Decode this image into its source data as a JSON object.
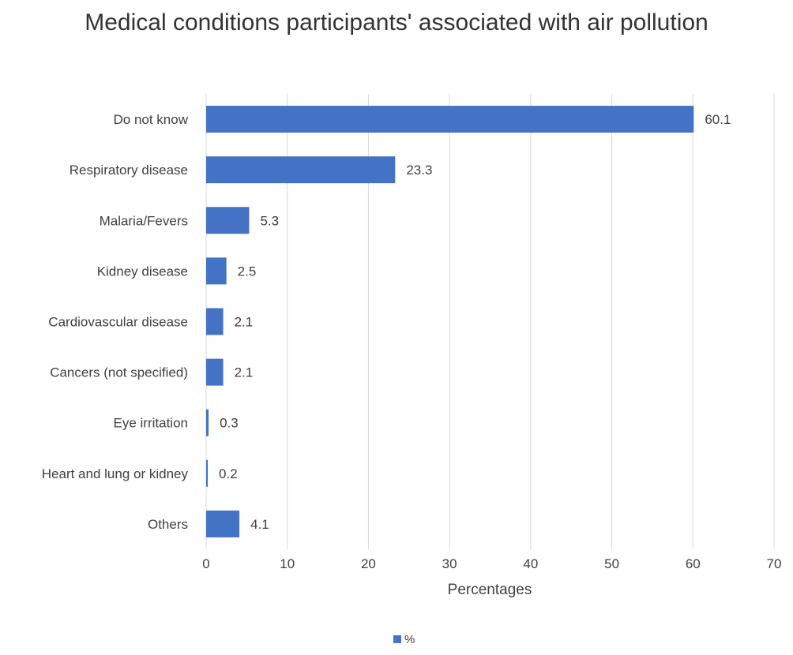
{
  "chart_data": {
    "type": "bar",
    "orientation": "horizontal",
    "title": "Medical conditions participants' associated with air pollution",
    "categories": [
      "Do not know",
      "Respiratory disease",
      "Malaria/Fevers",
      "Kidney disease",
      "Cardiovascular disease",
      "Cancers (not specified)",
      "Eye irritation",
      "Heart and lung or kidney",
      "Others"
    ],
    "series": [
      {
        "name": "%",
        "values": [
          60.1,
          23.3,
          5.3,
          2.5,
          2.1,
          2.1,
          0.3,
          0.2,
          4.1
        ]
      }
    ],
    "data_labels": [
      "60.1",
      "23.3",
      "5.3",
      "2.5",
      "2.1",
      "2.1",
      "0.3",
      "0.2",
      "4.1"
    ],
    "xlabel": "Percentages",
    "ylabel": "",
    "xlim": [
      0,
      70
    ],
    "x_ticks": [
      0,
      10,
      20,
      30,
      40,
      50,
      60,
      70
    ],
    "grid": "vertical",
    "legend_position": "bottom",
    "bar_color": "#4472C4"
  }
}
